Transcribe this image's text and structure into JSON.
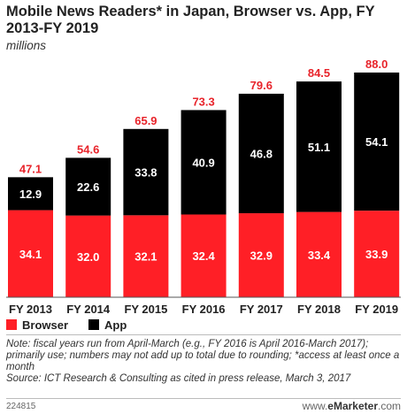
{
  "header": {
    "title": "Mobile News Readers* in Japan, Browser vs. App, FY 2013-FY 2019",
    "subtitle": "millions"
  },
  "colors": {
    "browser": "#ff1f26",
    "app": "#000000",
    "total_label": "#e8242b",
    "bar_label": "#ffffff"
  },
  "chart_data": {
    "type": "bar",
    "stacked": true,
    "categories": [
      "FY 2013",
      "FY 2014",
      "FY 2015",
      "FY 2016",
      "FY 2017",
      "FY 2018",
      "FY 2019"
    ],
    "series": [
      {
        "name": "Browser",
        "values": [
          34.1,
          32.0,
          32.1,
          32.4,
          32.9,
          33.4,
          33.9
        ]
      },
      {
        "name": "App",
        "values": [
          12.9,
          22.6,
          33.8,
          40.9,
          46.8,
          51.1,
          54.1
        ]
      }
    ],
    "totals": [
      47.1,
      54.6,
      65.9,
      73.3,
      79.6,
      84.5,
      88.0
    ],
    "title": "Mobile News Readers* in Japan, Browser vs. App, FY 2013-FY 2019",
    "subtitle": "millions",
    "ylim": [
      0,
      88.0
    ],
    "grid": false,
    "legend": "bottom-left"
  },
  "legend": {
    "browser_label": "Browser",
    "app_label": "App"
  },
  "footer": {
    "note": "Note: fiscal years run from April-March (e.g., FY 2016 is April 2016-March 2017); primarily use; numbers may not add up to total due to rounding; *access at least once a month",
    "source": "Source: ICT Research & Consulting as cited in press release, March 3, 2017",
    "chart_id": "224815",
    "brand_prefix": "www.",
    "brand_name": "eMarketer",
    "brand_suffix": ".com"
  }
}
